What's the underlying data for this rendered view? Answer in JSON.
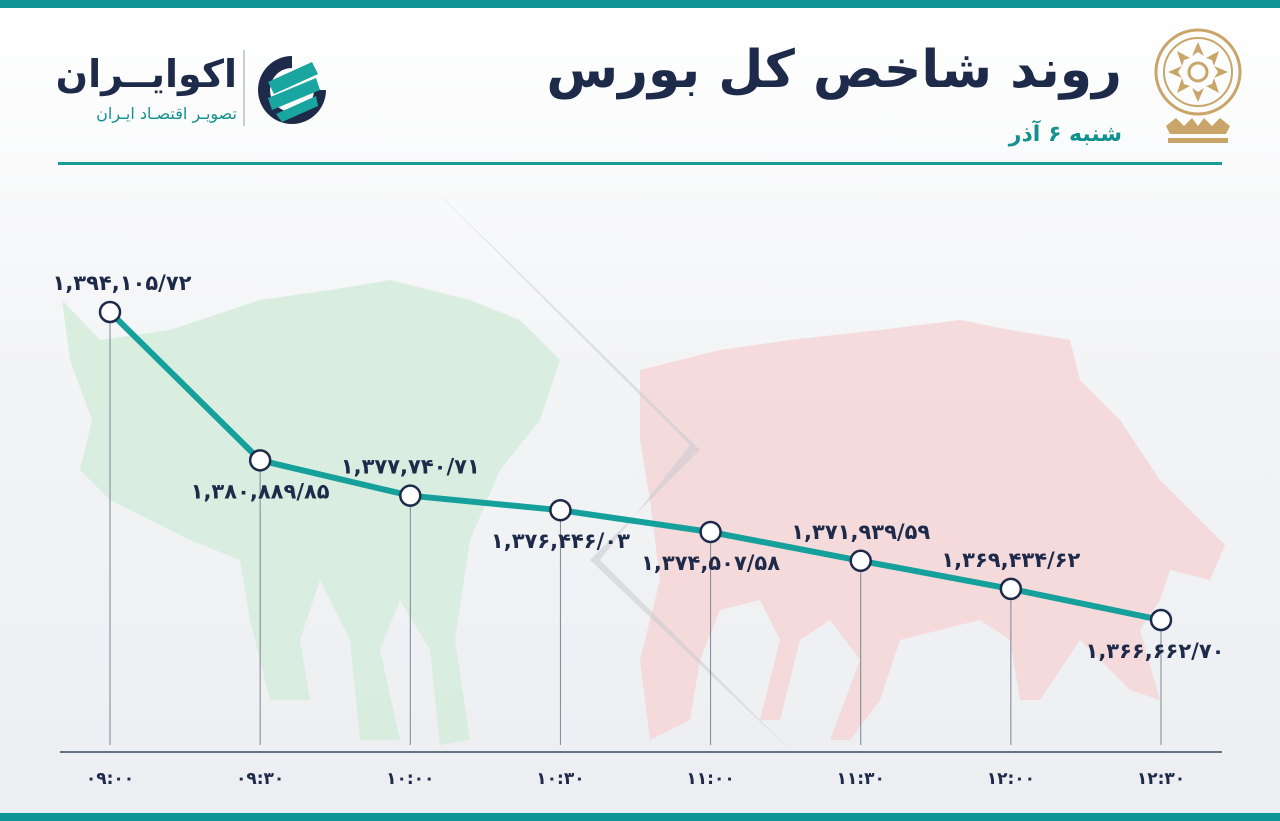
{
  "header": {
    "title": "روند شاخص کل بورس",
    "date": "شنبه ۶ آذر"
  },
  "brand": {
    "name": "اکوایــران",
    "tagline": "تصویـر اقتصـاد ایـران"
  },
  "colors": {
    "line": "#16a09c",
    "accent": "#0e9494",
    "text": "#1e2a4a",
    "bull": "#cfe9d6",
    "bear": "#f3cfcf"
  },
  "icons": [
    "tehran-stock-exchange-emblem-icon",
    "ecoiran-logo-icon",
    "bull-silhouette",
    "bear-silhouette"
  ],
  "chart_data": {
    "type": "line",
    "title": "روند شاخص کل بورس",
    "x": [
      "۰۹:۰۰",
      "۰۹:۳۰",
      "۱۰:۰۰",
      "۱۰:۳۰",
      "۱۱:۰۰",
      "۱۱:۳۰",
      "۱۲:۰۰",
      "۱۲:۳۰"
    ],
    "values": [
      1394105.72,
      1380889.85,
      1377740.71,
      1376446.03,
      1374507.58,
      1371939.59,
      1369434.62,
      1366662.7
    ],
    "data_labels": [
      "۱,۳۹۴,۱۰۵/۷۲",
      "۱,۳۸۰,۸۸۹/۸۵",
      "۱,۳۷۷,۷۴۰/۷۱",
      "۱,۳۷۶,۴۴۶/۰۳",
      "۱,۳۷۴,۵۰۷/۵۸",
      "۱,۳۷۱,۹۳۹/۵۹",
      "۱,۳۶۹,۴۳۴/۶۲",
      "۱,۳۶۶,۶۶۲/۷۰"
    ],
    "label_positions": [
      "above",
      "below",
      "above",
      "below",
      "below",
      "above",
      "above",
      "below"
    ],
    "xlabel": "",
    "ylabel": "",
    "ylim": [
      1366662.7,
      1394105.72
    ],
    "grid": false,
    "legend": "none"
  }
}
